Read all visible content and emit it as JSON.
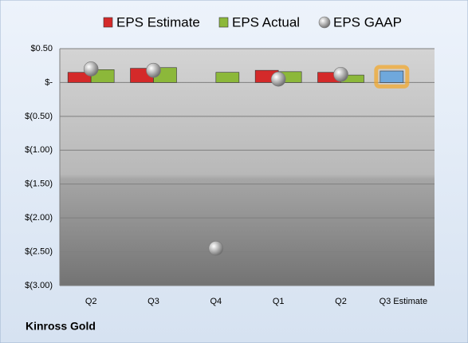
{
  "chart_data": {
    "type": "bar",
    "categories": [
      "Q2",
      "Q3",
      "Q4",
      "Q1",
      "Q2",
      "Q3 Estimate"
    ],
    "series": [
      {
        "name": "EPS Estimate",
        "color": "#d42a2a",
        "point_colors": [
          "#d42a2a",
          "#d42a2a",
          "#d42a2a",
          "#d42a2a",
          "#d42a2a",
          "#6fa8dc"
        ],
        "highlight_color": "#f5a623",
        "values": [
          0.15,
          0.21,
          null,
          0.18,
          0.15,
          0.17
        ]
      },
      {
        "name": "EPS Actual",
        "color": "#8cb83a",
        "values": [
          0.19,
          0.22,
          0.15,
          0.16,
          0.11,
          null
        ]
      },
      {
        "name": "EPS GAAP",
        "color": "#a6a6a6",
        "marker": "circle",
        "values": [
          0.2,
          0.18,
          -2.45,
          0.05,
          0.12,
          null
        ]
      }
    ],
    "ylim": [
      -3.0,
      0.5
    ],
    "yticks": [
      {
        "value": 0.5,
        "label": "$0.50"
      },
      {
        "value": 0,
        "label": "$-"
      },
      {
        "value": -0.5,
        "label": "$(0.50)"
      },
      {
        "value": -1.0,
        "label": "$(1.00)"
      },
      {
        "value": -1.5,
        "label": "$(1.50)"
      },
      {
        "value": -2.0,
        "label": "$(2.00)"
      },
      {
        "value": -2.5,
        "label": "$(2.50)"
      },
      {
        "value": -3.0,
        "label": "$(3.00)"
      }
    ],
    "grid": true,
    "legend": "top",
    "caption": "Kinross Gold"
  }
}
